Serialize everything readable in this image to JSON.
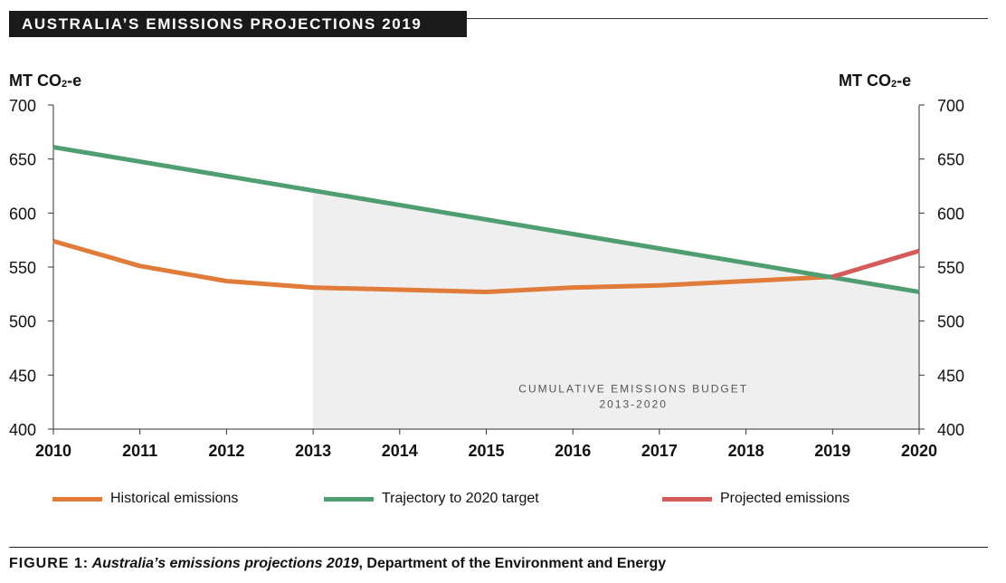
{
  "title": "AUSTRALIA’S EMISSIONS PROJECTIONS 2019",
  "unit_left": "MT CO",
  "unit_sub": "2",
  "unit_suffix": "-e",
  "caption": {
    "figure": "FIGURE 1",
    "sep": ": ",
    "italic": "Australia’s emissions projections 2019",
    "rest": ", Department of the Environment and Energy"
  },
  "colors": {
    "historical": "#e07b39",
    "trajectory": "#4f9e72",
    "projected": "#d45b5b",
    "budget_fill": "#efefef"
  },
  "chart_data": {
    "type": "line",
    "title": "AUSTRALIA’S EMISSIONS PROJECTIONS 2019",
    "ylabel": "MT CO2-e",
    "ylabel_right": "MT CO2-e",
    "xlabel": "",
    "ylim": [
      400,
      700
    ],
    "yticks": [
      400,
      450,
      500,
      550,
      600,
      650,
      700
    ],
    "xticks": [
      2010,
      2011,
      2012,
      2013,
      2014,
      2015,
      2016,
      2017,
      2018,
      2019,
      2020
    ],
    "grid": false,
    "legend_position": "bottom",
    "series": [
      {
        "name": "Historical emissions",
        "color": "#e07b39",
        "x": [
          2010,
          2011,
          2012,
          2013,
          2014,
          2015,
          2016,
          2017,
          2018,
          2019
        ],
        "y": [
          574,
          551,
          537,
          531,
          529,
          527,
          531,
          533,
          537,
          541
        ]
      },
      {
        "name": "Trajectory to 2020 target",
        "color": "#4f9e72",
        "x": [
          2010,
          2020
        ],
        "y": [
          661,
          527
        ]
      },
      {
        "name": "Projected emissions",
        "color": "#d45b5b",
        "x": [
          2019,
          2020
        ],
        "y": [
          541,
          565
        ]
      }
    ],
    "annotations": [
      {
        "text": [
          "CUMULATIVE EMISSIONS BUDGET",
          "2013-2020"
        ],
        "x": 2016.7,
        "y": 434
      }
    ],
    "shaded_region": {
      "x_start": 2013,
      "x_end": 2020,
      "upper": "Trajectory to 2020 target",
      "lower": 400
    }
  }
}
